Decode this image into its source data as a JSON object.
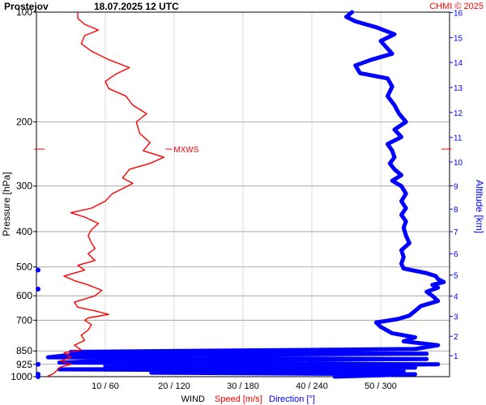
{
  "header": {
    "station": "Prostejov",
    "datetime": "18.07.2025 12 UTC",
    "credit": "CHMI © 2025"
  },
  "chart_data": {
    "type": "line",
    "left_axis": {
      "label": "Pressure [hPa]",
      "ticks": [
        100,
        200,
        300,
        400,
        500,
        600,
        700,
        850,
        925,
        1000
      ],
      "tick_labels": [
        "100",
        "200",
        "300",
        "400",
        "500",
        "600",
        "700",
        "850",
        "925",
        "1000"
      ],
      "scale": "log",
      "range": [
        1000,
        100
      ]
    },
    "right_axis": {
      "label": "Altitude [km]",
      "ticks": [
        1,
        2,
        3,
        4,
        5,
        6,
        7,
        8,
        9,
        10,
        11,
        12,
        13,
        14,
        15,
        16
      ],
      "tick_labels": [
        "1",
        "2",
        "3",
        "4",
        "5",
        "6",
        "7",
        "8",
        "9",
        "10",
        "11",
        "12",
        "13",
        "14",
        "15",
        "16"
      ],
      "color": "#0000ff"
    },
    "bottom_axis": {
      "title": "WIND",
      "speed_label": "Speed [m/s]",
      "direction_label": "Direction [°]",
      "speed_range": [
        0,
        60
      ],
      "direction_range": [
        0,
        360
      ],
      "tick_labels": [
        "10 / 60",
        "20 / 120",
        "30 / 180",
        "40 / 240",
        "50 / 300"
      ],
      "speed_ticks": [
        10,
        20,
        30,
        40,
        50
      ]
    },
    "max_wind": {
      "label": "MXWS",
      "pressure": 250,
      "speed": 18.5
    },
    "series": [
      {
        "name": "Speed [m/s]",
        "color": "#ff0000",
        "unit": "m/s",
        "points": [
          [
            1000,
            1.5
          ],
          [
            980,
            2.5
          ],
          [
            960,
            3.0
          ],
          [
            940,
            3.5
          ],
          [
            925,
            5.0
          ],
          [
            905,
            3.5
          ],
          [
            885,
            5.0
          ],
          [
            860,
            4.0
          ],
          [
            845,
            6.5
          ],
          [
            820,
            5.5
          ],
          [
            795,
            7.0
          ],
          [
            770,
            6.5
          ],
          [
            745,
            7.5
          ],
          [
            720,
            8.0
          ],
          [
            700,
            7.0
          ],
          [
            690,
            7.5
          ],
          [
            675,
            10.5
          ],
          [
            660,
            8.5
          ],
          [
            645,
            6.0
          ],
          [
            625,
            5.5
          ],
          [
            600,
            8.5
          ],
          [
            580,
            9.5
          ],
          [
            560,
            7.5
          ],
          [
            545,
            5.5
          ],
          [
            530,
            4.0
          ],
          [
            510,
            7.0
          ],
          [
            495,
            6.0
          ],
          [
            480,
            8.5
          ],
          [
            460,
            7.5
          ],
          [
            445,
            8.5
          ],
          [
            430,
            8.0
          ],
          [
            410,
            7.5
          ],
          [
            395,
            8.0
          ],
          [
            380,
            9.0
          ],
          [
            365,
            7.0
          ],
          [
            355,
            5.0
          ],
          [
            345,
            8.0
          ],
          [
            330,
            10.0
          ],
          [
            315,
            11.0
          ],
          [
            305,
            12.5
          ],
          [
            295,
            14.0
          ],
          [
            285,
            12.5
          ],
          [
            270,
            13.5
          ],
          [
            260,
            16.5
          ],
          [
            250,
            18.5
          ],
          [
            240,
            15.5
          ],
          [
            228,
            16.5
          ],
          [
            215,
            15.0
          ],
          [
            200,
            14.5
          ],
          [
            190,
            16.0
          ],
          [
            180,
            14.0
          ],
          [
            170,
            13.0
          ],
          [
            162,
            10.5
          ],
          [
            155,
            10.0
          ],
          [
            148,
            11.5
          ],
          [
            142,
            13.5
          ],
          [
            135,
            10.5
          ],
          [
            128,
            8.0
          ],
          [
            122,
            6.5
          ],
          [
            116,
            7.0
          ],
          [
            112,
            9.0
          ],
          [
            108,
            7.0
          ],
          [
            104,
            6.0
          ],
          [
            100,
            6.0
          ]
        ]
      },
      {
        "name": "Direction [°]",
        "color": "#0000ff",
        "unit": "deg",
        "points": [
          [
            1000,
            260
          ],
          [
            985,
            330
          ],
          [
            975,
            100
          ],
          [
            965,
            320
          ],
          [
            955,
            20
          ],
          [
            945,
            330
          ],
          [
            935,
            60
          ],
          [
            925,
            350
          ],
          [
            915,
            20
          ],
          [
            905,
            60
          ],
          [
            895,
            340
          ],
          [
            885,
            10
          ],
          [
            875,
            25
          ],
          [
            865,
            340
          ],
          [
            855,
            30
          ],
          [
            840,
            330
          ],
          [
            820,
            350
          ],
          [
            800,
            320
          ],
          [
            780,
            330
          ],
          [
            760,
            310
          ],
          [
            745,
            305
          ],
          [
            730,
            300
          ],
          [
            710,
            296
          ],
          [
            695,
            315
          ],
          [
            680,
            325
          ],
          [
            660,
            330
          ],
          [
            640,
            335
          ],
          [
            620,
            350
          ],
          [
            600,
            345
          ],
          [
            585,
            340
          ],
          [
            570,
            350
          ],
          [
            560,
            345
          ],
          [
            550,
            355
          ],
          [
            540,
            350
          ],
          [
            530,
            348
          ],
          [
            520,
            340
          ],
          [
            505,
            320
          ],
          [
            490,
            318
          ],
          [
            470,
            320
          ],
          [
            450,
            318
          ],
          [
            430,
            325
          ],
          [
            410,
            322
          ],
          [
            390,
            320
          ],
          [
            375,
            322
          ],
          [
            360,
            318
          ],
          [
            345,
            322
          ],
          [
            330,
            318
          ],
          [
            315,
            322
          ],
          [
            300,
            318
          ],
          [
            290,
            310
          ],
          [
            280,
            318
          ],
          [
            270,
            312
          ],
          [
            260,
            308
          ],
          [
            250,
            312
          ],
          [
            240,
            310
          ],
          [
            230,
            306
          ],
          [
            220,
            318
          ],
          [
            210,
            312
          ],
          [
            200,
            322
          ],
          [
            190,
            316
          ],
          [
            180,
            312
          ],
          [
            170,
            306
          ],
          [
            160,
            310
          ],
          [
            152,
            306
          ],
          [
            147,
            282
          ],
          [
            140,
            278
          ],
          [
            135,
            292
          ],
          [
            130,
            310
          ],
          [
            125,
            305
          ],
          [
            120,
            300
          ],
          [
            115,
            312
          ],
          [
            110,
            296
          ],
          [
            106,
            278
          ],
          [
            103,
            270
          ],
          [
            100,
            275
          ]
        ]
      }
    ],
    "direction_ticks_left": [
      [
        1000,
        0
      ],
      [
        985,
        0
      ],
      [
        925,
        0
      ],
      [
        575,
        0
      ],
      [
        510,
        0
      ]
    ],
    "grid": true
  }
}
